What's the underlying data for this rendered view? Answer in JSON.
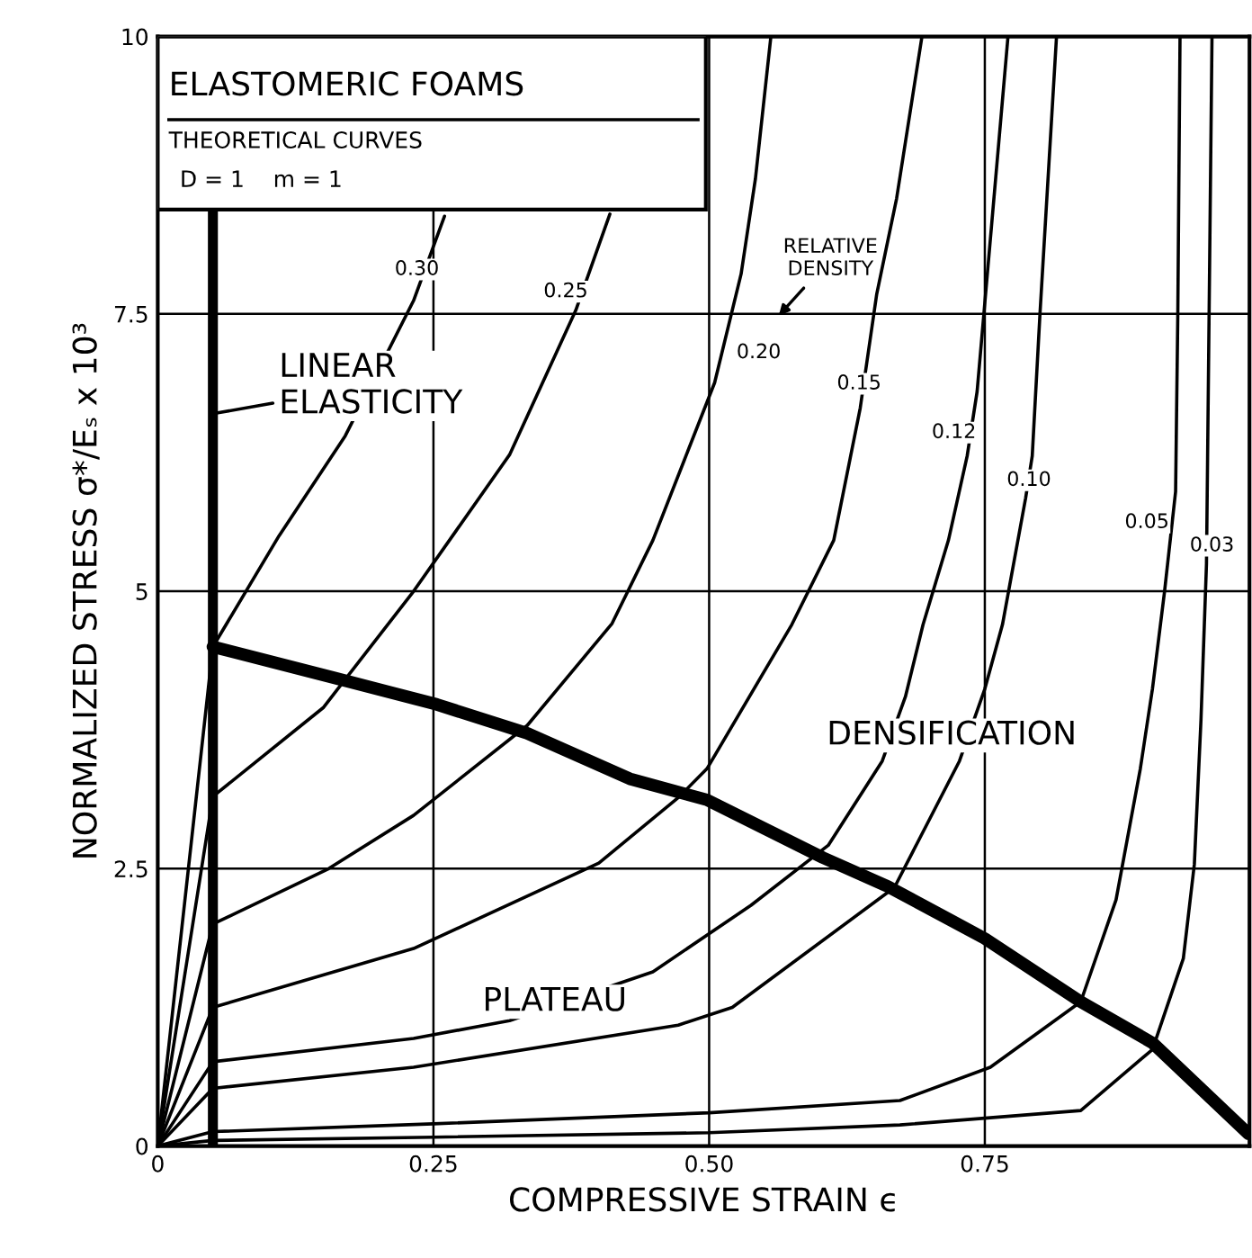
{
  "chart_data": {
    "type": "line",
    "title": "ELASTOMERIC FOAMS",
    "subtitle": "THEORETICAL CURVES",
    "xlabel": "COMPRESSIVE STRAIN ϵ",
    "ylabel": "NORMALIZED STRESS σ*/Eₛ x 10³",
    "xlim": [
      0,
      0.99
    ],
    "ylim": [
      0,
      10
    ],
    "xticks": [
      0,
      {
        "value": 0.25,
        "label": "0.25"
      },
      {
        "value": 0.5,
        "label": "0.50"
      },
      {
        "value": 0.75,
        "label": "0.75"
      }
    ],
    "yticks": [
      0,
      2.5,
      5,
      7.5,
      10
    ],
    "grid": true,
    "marker": "none",
    "line_style": "solid",
    "series": [
      {
        "color": "#000000",
        "x": [
          0,
          0.05,
          0.11,
          0.17,
          0.232,
          0.26
        ],
        "values": [
          0,
          4.5,
          5.5,
          6.4,
          7.62,
          8.38
        ]
      },
      {
        "color": "#000000",
        "x": [
          0,
          0.05,
          0.15,
          0.232,
          0.319,
          0.379,
          0.41
        ],
        "values": [
          0,
          3.15,
          3.95,
          5.0,
          6.23,
          7.53,
          8.4
        ]
      },
      {
        "color": "#000000",
        "x": [
          0,
          0.05,
          0.155,
          0.232,
          0.335,
          0.412,
          0.449,
          0.505,
          0.529,
          0.542,
          0.556
        ],
        "values": [
          0,
          2.0,
          2.5,
          2.98,
          3.79,
          4.71,
          5.46,
          6.88,
          7.86,
          8.72,
          10
        ]
      },
      {
        "color": "#000000",
        "x": [
          0,
          0.05,
          0.232,
          0.4,
          0.472,
          0.498,
          0.575,
          0.613,
          0.637,
          0.652,
          0.67,
          0.693
        ],
        "values": [
          0,
          1.25,
          1.78,
          2.55,
          3.14,
          3.4,
          4.7,
          5.46,
          6.65,
          7.68,
          8.54,
          10
        ]
      },
      {
        "color": "#000000",
        "x": [
          0,
          0.05,
          0.232,
          0.319,
          0.449,
          0.538,
          0.608,
          0.657,
          0.678,
          0.694,
          0.717,
          0.734,
          0.743,
          0.755,
          0.771
        ],
        "values": [
          0,
          0.76,
          0.97,
          1.13,
          1.57,
          2.17,
          2.71,
          3.47,
          4.05,
          4.7,
          5.46,
          6.22,
          6.8,
          8.17,
          10
        ]
      },
      {
        "color": "#000000",
        "x": [
          0,
          0.05,
          0.232,
          0.472,
          0.521,
          0.668,
          0.727,
          0.75,
          0.766,
          0.787,
          0.793,
          0.8,
          0.815
        ],
        "values": [
          0,
          0.52,
          0.71,
          1.09,
          1.25,
          2.33,
          3.47,
          4.12,
          4.7,
          5.84,
          6.22,
          7.5,
          10
        ]
      },
      {
        "color": "#000000",
        "x": [
          0,
          0.05,
          0.25,
          0.5,
          0.673,
          0.755,
          0.837,
          0.869,
          0.891,
          0.902,
          0.913,
          0.923,
          0.925,
          0.927
        ],
        "values": [
          0,
          0.13,
          0.2,
          0.3,
          0.41,
          0.71,
          1.3,
          2.22,
          3.4,
          4.12,
          5.0,
          5.9,
          7.5,
          10
        ]
      },
      {
        "color": "#000000",
        "x": [
          0,
          0.05,
          0.25,
          0.5,
          0.673,
          0.837,
          0.902,
          0.93,
          0.94,
          0.946,
          0.951,
          0.956
        ],
        "values": [
          0,
          0.05,
          0.08,
          0.12,
          0.19,
          0.32,
          0.87,
          1.69,
          2.54,
          3.84,
          5.25,
          10
        ]
      },
      {
        "color": "#000000",
        "x": [
          0.05,
          0.16,
          0.253,
          0.335,
          0.428,
          0.498,
          0.603,
          0.662,
          0.75,
          0.837,
          0.902,
          0.989
        ],
        "values": [
          4.5,
          4.22,
          3.98,
          3.72,
          3.31,
          3.12,
          2.6,
          2.34,
          1.87,
          1.3,
          0.93,
          0.11
        ]
      }
    ],
    "ref_lines": [
      {
        "axis": "x",
        "value": 0.05,
        "label": "LINEAR\nELASTICITY",
        "color": "#000000"
      }
    ],
    "annotations": [
      "D = 1    m = 1",
      {
        "text": "0.30",
        "x": 0.235,
        "y": 7.9
      },
      {
        "text": "0.25",
        "x": 0.37,
        "y": 7.7
      },
      "RELATIVE\nDENSITY",
      {
        "text": "0.20",
        "x": 0.545,
        "y": 7.15
      },
      {
        "text": "0.15",
        "x": 0.636,
        "y": 6.87
      },
      {
        "text": "0.12",
        "x": 0.722,
        "y": 6.43
      },
      {
        "text": "0.10",
        "x": 0.79,
        "y": 6.0
      },
      {
        "text": "0.05",
        "x": 0.897,
        "y": 5.62
      },
      {
        "text": "0.03",
        "x": 0.956,
        "y": 5.41
      },
      {
        "text": "PLATEAU",
        "x": 0.36,
        "y": 1.3
      },
      "DENSIFICATION"
    ]
  }
}
